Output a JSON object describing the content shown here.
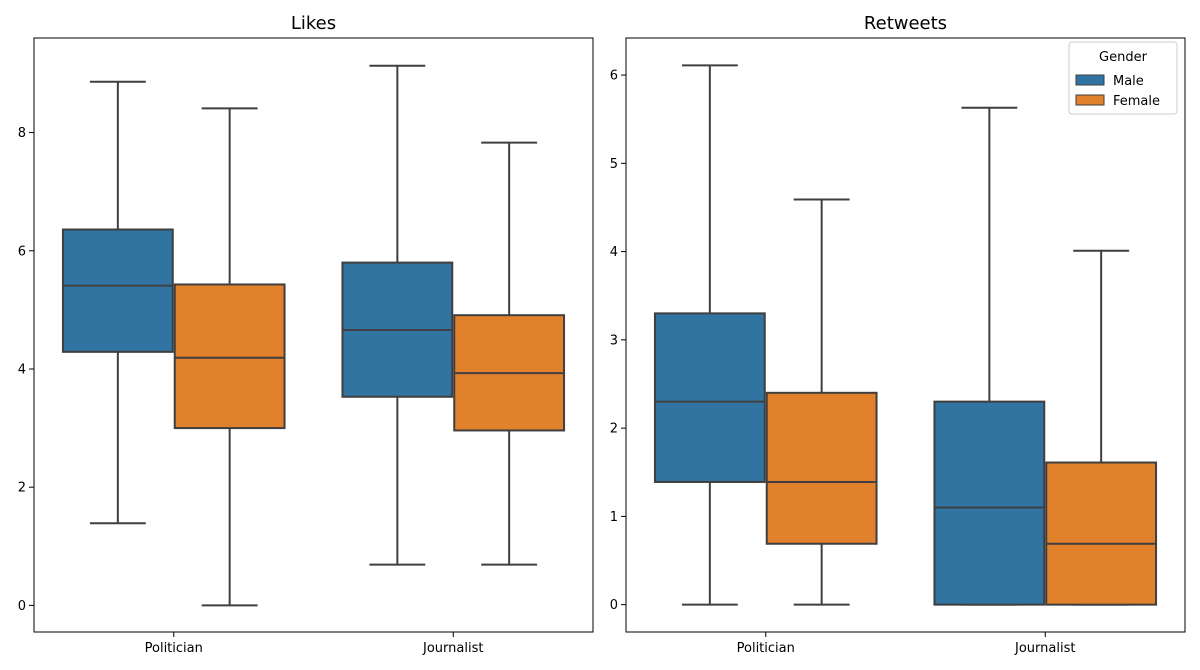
{
  "chart_data": [
    {
      "type": "box",
      "title": "Likes",
      "xlabel": "",
      "ylabel": "",
      "categories": [
        "Politician",
        "Journalist"
      ],
      "ylim": [
        -0.45,
        9.6
      ],
      "yticks": [
        0,
        2,
        4,
        6,
        8
      ],
      "grid": false,
      "series": [
        {
          "name": "Male",
          "color": "#3274a1",
          "boxes": [
            {
              "min": 1.39,
              "q1": 4.29,
              "median": 5.41,
              "q3": 6.36,
              "max": 8.86
            },
            {
              "min": 0.69,
              "q1": 3.53,
              "median": 4.66,
              "q3": 5.8,
              "max": 9.13
            }
          ]
        },
        {
          "name": "Female",
          "color": "#e1812c",
          "boxes": [
            {
              "min": 0.0,
              "q1": 3.0,
              "median": 4.19,
              "q3": 5.43,
              "max": 8.41
            },
            {
              "min": 0.69,
              "q1": 2.96,
              "median": 3.93,
              "q3": 4.91,
              "max": 7.83
            }
          ]
        }
      ]
    },
    {
      "type": "box",
      "title": "Retweets",
      "xlabel": "",
      "ylabel": "",
      "categories": [
        "Politician",
        "Journalist"
      ],
      "ylim": [
        -0.31,
        6.42
      ],
      "yticks": [
        0,
        1,
        2,
        3,
        4,
        5,
        6
      ],
      "grid": false,
      "legend": {
        "title": "Gender",
        "placement": "top-right",
        "entries": [
          "Male",
          "Female"
        ]
      },
      "series": [
        {
          "name": "Male",
          "color": "#3274a1",
          "boxes": [
            {
              "min": 0.0,
              "q1": 1.39,
              "median": 2.3,
              "q3": 3.3,
              "max": 6.11
            },
            {
              "min": 0.0,
              "q1": 0.0,
              "median": 1.1,
              "q3": 2.3,
              "max": 5.63
            }
          ]
        },
        {
          "name": "Female",
          "color": "#e1812c",
          "boxes": [
            {
              "min": 0.0,
              "q1": 0.69,
              "median": 1.39,
              "q3": 2.4,
              "max": 4.59
            },
            {
              "min": 0.0,
              "q1": 0.0,
              "median": 0.69,
              "q3": 1.61,
              "max": 4.01
            }
          ]
        }
      ]
    }
  ]
}
